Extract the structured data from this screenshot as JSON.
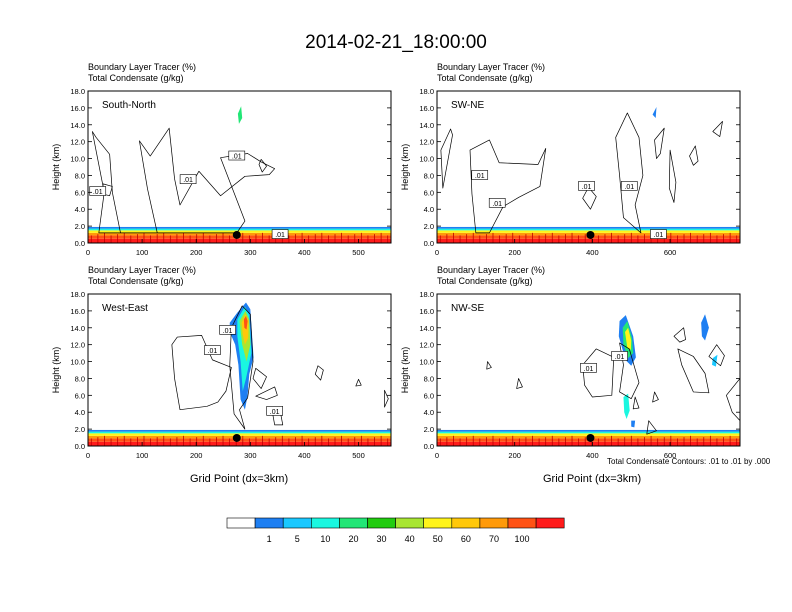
{
  "title": "2014-02-21_18:00:00",
  "panel_header_1": "Boundary Layer Tracer   (%)",
  "panel_header_2": "Total Condensate   (g/kg)",
  "ylabel": "Height (km)",
  "xlabel": "Grid Point (dx=3km)",
  "contour_note": "Total Condensate Contours: .01 to .01 by .000",
  "contour_label": ".01",
  "colorbar": {
    "colors": [
      "#ffffff",
      "#1e7ff2",
      "#1ac8ff",
      "#1af7e0",
      "#22e676",
      "#21cc10",
      "#a8e632",
      "#fff41a",
      "#ffc80a",
      "#ff9a0a",
      "#ff5214",
      "#ff1b1b"
    ],
    "labels": [
      "1",
      "5",
      "10",
      "20",
      "30",
      "40",
      "50",
      "60",
      "70",
      "100"
    ]
  },
  "chart_data": [
    {
      "type": "heatmap",
      "name": "South-North",
      "xlim": [
        0,
        560
      ],
      "ylim": [
        0,
        18
      ],
      "xticks": [
        "0",
        "100",
        "200",
        "300",
        "400",
        "500"
      ],
      "yticks": [
        "0.0",
        "2.0",
        "4.0",
        "6.0",
        "8.0",
        "10.0",
        "12.0",
        "14.0",
        "16.0",
        "18.0"
      ],
      "marker_x": 275,
      "contour_labels_at": [
        [
          18,
          6.1
        ],
        [
          185,
          7.5
        ],
        [
          275,
          10.3
        ],
        [
          355,
          1.0
        ]
      ]
    },
    {
      "type": "heatmap",
      "name": "SW-NE",
      "xlim": [
        0,
        780
      ],
      "ylim": [
        0,
        18
      ],
      "xticks": [
        "0",
        "200",
        "400",
        "600"
      ],
      "yticks": [
        "0.0",
        "2.0",
        "4.0",
        "6.0",
        "8.0",
        "10.0",
        "12.0",
        "14.0",
        "16.0",
        "18.0"
      ],
      "marker_x": 395,
      "contour_labels_at": [
        [
          110,
          8.0
        ],
        [
          155,
          4.7
        ],
        [
          385,
          6.7
        ],
        [
          495,
          6.7
        ],
        [
          570,
          1.0
        ]
      ]
    },
    {
      "type": "heatmap",
      "name": "West-East",
      "xlim": [
        0,
        560
      ],
      "ylim": [
        0,
        18
      ],
      "xticks": [
        "0",
        "100",
        "200",
        "300",
        "400",
        "500"
      ],
      "yticks": [
        "0.0",
        "2.0",
        "4.0",
        "6.0",
        "8.0",
        "10.0",
        "12.0",
        "14.0",
        "16.0",
        "18.0"
      ],
      "marker_x": 275,
      "contour_labels_at": [
        [
          258,
          13.7
        ],
        [
          230,
          11.3
        ],
        [
          345,
          4.1
        ]
      ]
    },
    {
      "type": "heatmap",
      "name": "NW-SE",
      "xlim": [
        0,
        780
      ],
      "ylim": [
        0,
        18
      ],
      "xticks": [
        "0",
        "200",
        "400",
        "600"
      ],
      "yticks": [
        "0.0",
        "2.0",
        "4.0",
        "6.0",
        "8.0",
        "10.0",
        "12.0",
        "14.0",
        "16.0",
        "18.0"
      ],
      "marker_x": 395,
      "contour_labels_at": [
        [
          390,
          9.2
        ],
        [
          470,
          10.6
        ]
      ]
    }
  ]
}
